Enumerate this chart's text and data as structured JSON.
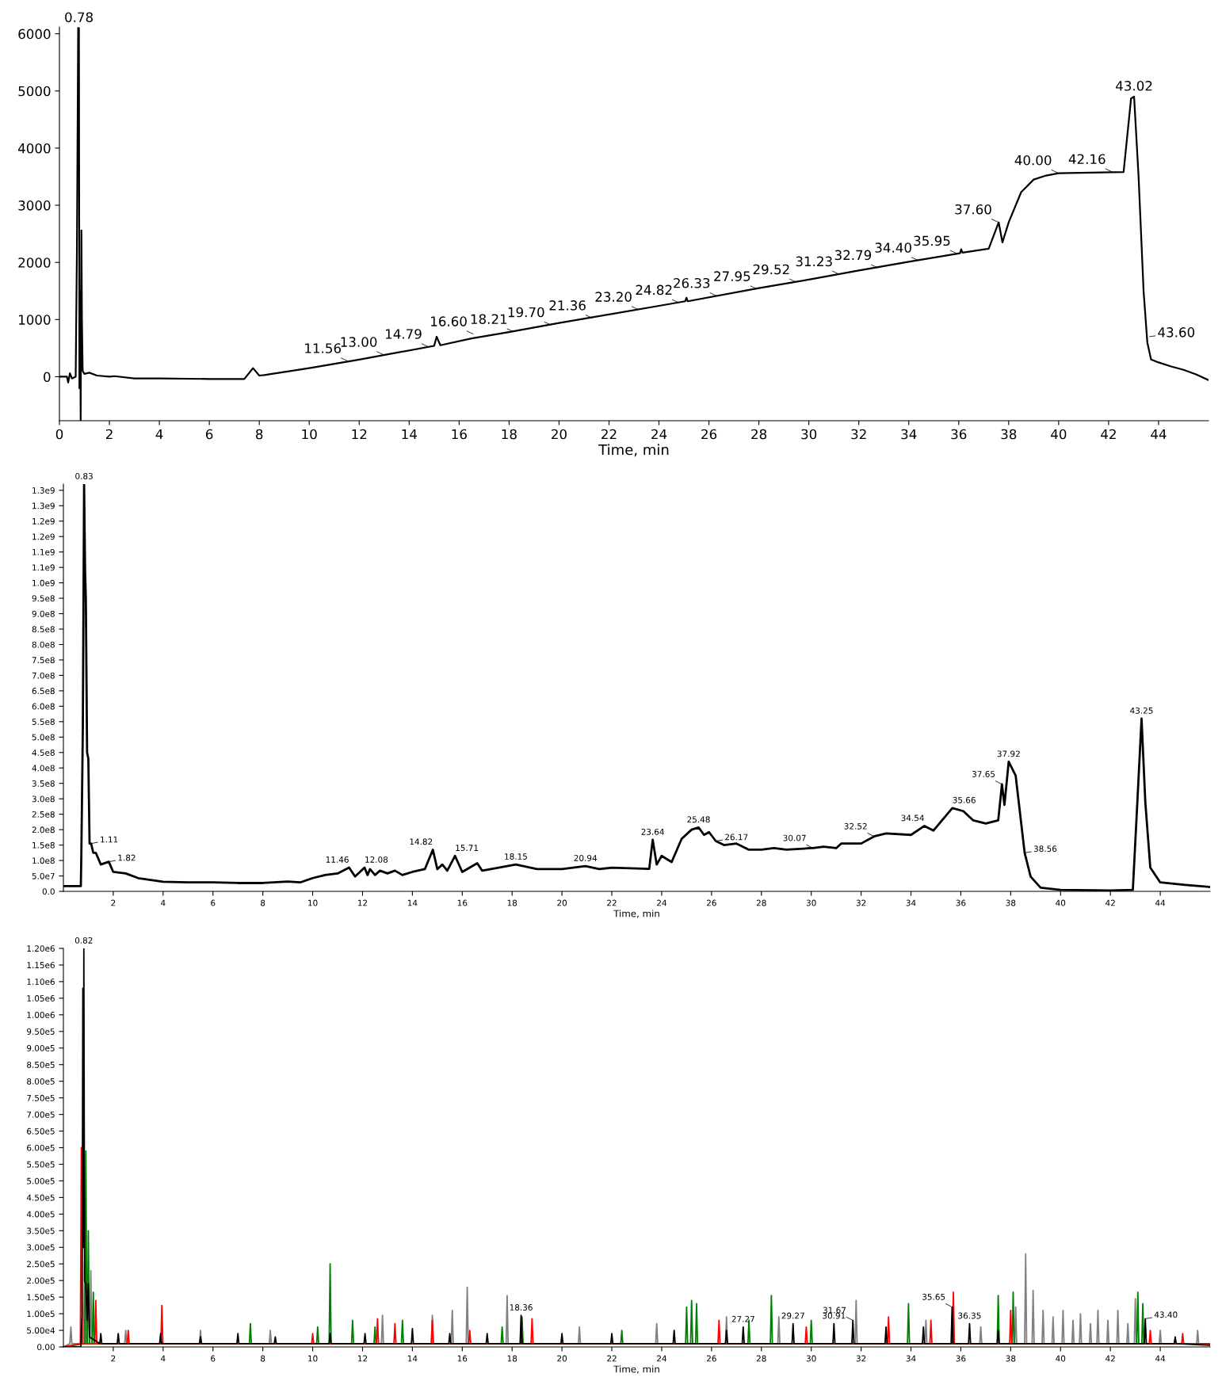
{
  "chart_data": [
    {
      "type": "line",
      "xlabel": "Time, min",
      "xlim": [
        0,
        46
      ],
      "ylim": [
        -770,
        6120
      ],
      "xticks": [
        0,
        2,
        4,
        6,
        8,
        10,
        12,
        14,
        16,
        18,
        20,
        22,
        24,
        26,
        28,
        30,
        32,
        34,
        36,
        38,
        40,
        42,
        44
      ],
      "yticks": [
        0,
        1000,
        2000,
        3000,
        4000,
        5000,
        6000
      ],
      "series": [
        {
          "color": "#000000",
          "x": [
            0,
            0.3,
            0.35,
            0.42,
            0.5,
            0.65,
            0.7,
            0.75,
            0.78,
            0.8,
            0.83,
            0.85,
            0.88,
            0.9,
            0.93,
            1.0,
            1.2,
            1.5,
            2.0,
            2.2,
            3,
            4,
            6,
            7.4,
            7.75,
            8.0,
            8.2,
            10,
            12,
            15,
            15.1,
            15.25,
            16.5,
            18,
            20,
            22,
            24,
            25.05,
            25.1,
            25.15,
            28,
            30,
            32,
            34,
            36.05,
            36.1,
            36.15,
            37.2,
            37.6,
            37.75,
            38.0,
            38.5,
            39.0,
            39.5,
            40.0,
            42.6,
            42.9,
            43.02,
            43.2,
            43.4,
            43.55,
            43.7,
            44.0,
            44.5,
            45.0,
            45.5,
            46
          ],
          "values": [
            0,
            0,
            -100,
            60,
            -30,
            0,
            2200,
            6100,
            6100,
            -200,
            1500,
            -760,
            2560,
            1000,
            100,
            50,
            70,
            20,
            0,
            10,
            -30,
            -30,
            -40,
            -40,
            150,
            20,
            30,
            150,
            300,
            540,
            700,
            550,
            670,
            780,
            940,
            1090,
            1240,
            1320,
            1380,
            1320,
            1550,
            1700,
            1860,
            2010,
            2160,
            2230,
            2170,
            2240,
            2700,
            2350,
            2700,
            3230,
            3450,
            3520,
            3560,
            3580,
            4870,
            4900,
            3500,
            1500,
            600,
            300,
            250,
            180,
            120,
            40,
            -60
          ]
        }
      ],
      "annotations": [
        {
          "text": "0.78",
          "x": 0.78,
          "y": 6100
        },
        {
          "text": "11.56",
          "x": 11.56,
          "y": 270
        },
        {
          "text": "13.00",
          "x": 13.0,
          "y": 380
        },
        {
          "text": "14.79",
          "x": 14.79,
          "y": 520
        },
        {
          "text": "16.60",
          "x": 16.6,
          "y": 740
        },
        {
          "text": "18.21",
          "x": 18.21,
          "y": 780
        },
        {
          "text": "19.70",
          "x": 19.7,
          "y": 900
        },
        {
          "text": "21.36",
          "x": 21.36,
          "y": 1020
        },
        {
          "text": "23.20",
          "x": 23.2,
          "y": 1170
        },
        {
          "text": "24.82",
          "x": 24.82,
          "y": 1290
        },
        {
          "text": "26.33",
          "x": 26.33,
          "y": 1410
        },
        {
          "text": "27.95",
          "x": 27.95,
          "y": 1530
        },
        {
          "text": "29.52",
          "x": 29.52,
          "y": 1650
        },
        {
          "text": "31.23",
          "x": 31.23,
          "y": 1790
        },
        {
          "text": "32.79",
          "x": 32.79,
          "y": 1900
        },
        {
          "text": "34.40",
          "x": 34.4,
          "y": 2030
        },
        {
          "text": "35.95",
          "x": 35.95,
          "y": 2150
        },
        {
          "text": "37.60",
          "x": 37.6,
          "y": 2700
        },
        {
          "text": "40.00",
          "x": 40.0,
          "y": 3560
        },
        {
          "text": "42.16",
          "x": 42.16,
          "y": 3580
        },
        {
          "text": "43.02",
          "x": 43.02,
          "y": 4900
        },
        {
          "text": "43.60",
          "x": 43.6,
          "y": 700
        }
      ]
    },
    {
      "type": "line",
      "xlabel": "Time, min",
      "xlim": [
        0,
        46
      ],
      "ylim": [
        0,
        1320000000
      ],
      "xticks": [
        2,
        4,
        6,
        8,
        10,
        12,
        14,
        16,
        18,
        20,
        22,
        24,
        26,
        28,
        30,
        32,
        34,
        36,
        38,
        40,
        42,
        44
      ],
      "yticks": [
        {
          "value": 0,
          "label": "0.0"
        },
        {
          "value": 50000000,
          "label": "5.0e7"
        },
        {
          "value": 100000000,
          "label": "1.0e8"
        },
        {
          "value": 150000000,
          "label": "1.5e8"
        },
        {
          "value": 200000000,
          "label": "2.0e8"
        },
        {
          "value": 250000000,
          "label": "2.5e8"
        },
        {
          "value": 300000000,
          "label": "3.0e8"
        },
        {
          "value": 350000000,
          "label": "3.5e8"
        },
        {
          "value": 400000000,
          "label": "4.0e8"
        },
        {
          "value": 450000000,
          "label": "4.5e8"
        },
        {
          "value": 500000000,
          "label": "5.0e8"
        },
        {
          "value": 550000000,
          "label": "5.5e8"
        },
        {
          "value": 600000000,
          "label": "6.0e8"
        },
        {
          "value": 650000000,
          "label": "6.5e8"
        },
        {
          "value": 700000000,
          "label": "7.0e8"
        },
        {
          "value": 750000000,
          "label": "7.5e8"
        },
        {
          "value": 800000000,
          "label": "8.0e8"
        },
        {
          "value": 850000000,
          "label": "8.5e8"
        },
        {
          "value": 900000000,
          "label": "9.0e8"
        },
        {
          "value": 950000000,
          "label": "9.5e8"
        },
        {
          "value": 1000000000,
          "label": "1.0e9"
        },
        {
          "value": 1050000000,
          "label": "1.1e9"
        },
        {
          "value": 1100000000,
          "label": "1.1e9"
        },
        {
          "value": 1150000000,
          "label": "1.2e9"
        },
        {
          "value": 1200000000,
          "label": "1.2e9"
        },
        {
          "value": 1250000000,
          "label": "1.3e9"
        },
        {
          "value": 1300000000,
          "label": "1.3e9"
        }
      ],
      "series": [
        {
          "color": "#000000",
          "x": [
            0,
            0.7,
            0.72,
            0.78,
            0.83,
            0.87,
            0.9,
            0.95,
            1.0,
            1.05,
            1.11,
            1.2,
            1.3,
            1.5,
            1.82,
            2.0,
            2.5,
            3,
            4,
            5,
            6,
            7,
            8,
            9,
            9.5,
            10,
            10.5,
            11,
            11.46,
            11.7,
            12.08,
            12.2,
            12.3,
            12.5,
            12.7,
            13,
            13.3,
            13.6,
            14,
            14.5,
            14.82,
            15.0,
            15.2,
            15.4,
            15.71,
            16.0,
            16.6,
            16.8,
            18.15,
            19,
            20,
            20.94,
            21.5,
            22,
            23.5,
            23.64,
            23.8,
            24,
            24.4,
            24.8,
            25.2,
            25.48,
            25.7,
            25.9,
            26.17,
            26.5,
            27,
            27.5,
            28,
            28.5,
            29,
            30,
            30.07,
            30.5,
            31,
            31.2,
            32,
            32.52,
            33,
            34,
            34.54,
            34.9,
            35.66,
            36.1,
            36.5,
            37,
            37.5,
            37.65,
            37.75,
            37.92,
            38.2,
            38.56,
            38.8,
            39.2,
            40,
            42,
            42.9,
            43.05,
            43.25,
            43.4,
            43.6,
            44,
            45,
            46
          ],
          "values": [
            17000000,
            17000000,
            120000000,
            530000000,
            1320000000,
            1040000000,
            950000000,
            450000000,
            430000000,
            155000000,
            155000000,
            125000000,
            125000000,
            87000000,
            96000000,
            63000000,
            58000000,
            43000000,
            31000000,
            29000000,
            29000000,
            27000000,
            27000000,
            32000000,
            29000000,
            43000000,
            53000000,
            58000000,
            77000000,
            48000000,
            77000000,
            53000000,
            72000000,
            53000000,
            67000000,
            58000000,
            67000000,
            53000000,
            63000000,
            72000000,
            135000000,
            72000000,
            87000000,
            67000000,
            115000000,
            63000000,
            91000000,
            67000000,
            87000000,
            72000000,
            72000000,
            82000000,
            72000000,
            77000000,
            73000000,
            167000000,
            87000000,
            115000000,
            95000000,
            170000000,
            200000000,
            207000000,
            183000000,
            192000000,
            163000000,
            150000000,
            155000000,
            135000000,
            135000000,
            140000000,
            135000000,
            140000000,
            140000000,
            145000000,
            140000000,
            155000000,
            155000000,
            178000000,
            188000000,
            183000000,
            212000000,
            197000000,
            270000000,
            260000000,
            230000000,
            220000000,
            230000000,
            347000000,
            280000000,
            420000000,
            375000000,
            125000000,
            48000000,
            12000000,
            5000000,
            3000000,
            5000000,
            240000000,
            560000000,
            290000000,
            77000000,
            29000000,
            21000000,
            14000000
          ]
        }
      ],
      "annotations": [
        {
          "text": "0.83",
          "x": 0.83,
          "y": 1320000000
        },
        {
          "text": "1.11",
          "x": 1.11,
          "y": 155000000
        },
        {
          "text": "1.82",
          "x": 1.82,
          "y": 96000000
        },
        {
          "text": "11.46",
          "x": 11.46,
          "y": 77000000
        },
        {
          "text": "12.08",
          "x": 12.08,
          "y": 77000000
        },
        {
          "text": "14.82",
          "x": 14.82,
          "y": 135000000
        },
        {
          "text": "15.71",
          "x": 15.71,
          "y": 115000000
        },
        {
          "text": "18.15",
          "x": 18.15,
          "y": 87000000
        },
        {
          "text": "20.94",
          "x": 20.94,
          "y": 82000000
        },
        {
          "text": "23.64",
          "x": 23.64,
          "y": 167000000
        },
        {
          "text": "25.48",
          "x": 25.48,
          "y": 207000000
        },
        {
          "text": "26.17",
          "x": 26.17,
          "y": 163000000
        },
        {
          "text": "30.07",
          "x": 30.07,
          "y": 140000000
        },
        {
          "text": "32.52",
          "x": 32.52,
          "y": 178000000
        },
        {
          "text": "34.54",
          "x": 34.54,
          "y": 212000000
        },
        {
          "text": "35.66",
          "x": 35.66,
          "y": 270000000
        },
        {
          "text": "37.65",
          "x": 37.65,
          "y": 347000000
        },
        {
          "text": "37.92",
          "x": 37.92,
          "y": 420000000
        },
        {
          "text": "38.56",
          "x": 38.56,
          "y": 125000000
        },
        {
          "text": "43.25",
          "x": 43.25,
          "y": 560000000
        }
      ]
    },
    {
      "type": "line",
      "xlabel": "Time, min",
      "xlim": [
        0,
        46
      ],
      "ylim": [
        0,
        1200000
      ],
      "xticks": [
        2,
        4,
        6,
        8,
        10,
        12,
        14,
        16,
        18,
        20,
        22,
        24,
        26,
        28,
        30,
        32,
        34,
        36,
        38,
        40,
        42,
        44
      ],
      "yticks": [
        {
          "value": 0,
          "label": "0.00"
        },
        {
          "value": 50000,
          "label": "5.00e4"
        },
        {
          "value": 100000,
          "label": "1.00e5"
        },
        {
          "value": 150000,
          "label": "1.50e5"
        },
        {
          "value": 200000,
          "label": "2.00e5"
        },
        {
          "value": 250000,
          "label": "2.50e5"
        },
        {
          "value": 300000,
          "label": "3.00e5"
        },
        {
          "value": 350000,
          "label": "3.50e5"
        },
        {
          "value": 400000,
          "label": "4.00e5"
        },
        {
          "value": 450000,
          "label": "4.50e5"
        },
        {
          "value": 500000,
          "label": "5.00e5"
        },
        {
          "value": 550000,
          "label": "5.50e5"
        },
        {
          "value": 600000,
          "label": "6.00e5"
        },
        {
          "value": 650000,
          "label": "6.50e5"
        },
        {
          "value": 700000,
          "label": "7.00e5"
        },
        {
          "value": 750000,
          "label": "7.50e5"
        },
        {
          "value": 800000,
          "label": "8.00e5"
        },
        {
          "value": 850000,
          "label": "8.50e5"
        },
        {
          "value": 900000,
          "label": "9.00e5"
        },
        {
          "value": 950000,
          "label": "9.50e5"
        },
        {
          "value": 1000000,
          "label": "1.00e6"
        },
        {
          "value": 1050000,
          "label": "1.05e6"
        },
        {
          "value": 1100000,
          "label": "1.10e6"
        },
        {
          "value": 1150000,
          "label": "1.15e6"
        },
        {
          "value": 1200000,
          "label": "1.20e6"
        }
      ],
      "series": [
        {
          "color": "#808080",
          "x": [
            0,
            0.26,
            0.3,
            0.34,
            0.81,
            0.85,
            0.89,
            1.06,
            1.1,
            1.14,
            2.46,
            2.5,
            2.54,
            5.46,
            5.5,
            5.54,
            8.26,
            8.3,
            8.34,
            12.76,
            12.8,
            12.84,
            14.76,
            14.8,
            14.84,
            15.56,
            15.6,
            15.64,
            16.16,
            16.2,
            16.24,
            17.76,
            17.8,
            17.84,
            20.66,
            20.7,
            20.74,
            23.76,
            23.8,
            23.84,
            26.56,
            26.6,
            26.64,
            28.66,
            28.7,
            28.74,
            31.76,
            31.8,
            31.84,
            34.56,
            34.6,
            34.64,
            36.76,
            36.8,
            36.84,
            38.16,
            38.2,
            38.24,
            38.56,
            38.6,
            38.64,
            38.86,
            38.9,
            38.94,
            39.26,
            39.3,
            39.34,
            39.66,
            39.7,
            39.74,
            40.06,
            40.1,
            40.14,
            40.46,
            40.5,
            40.54,
            40.76,
            40.8,
            40.84,
            41.16,
            41.2,
            41.24,
            41.46,
            41.5,
            41.54,
            41.86,
            41.9,
            41.94,
            42.26,
            42.3,
            42.34,
            42.66,
            42.7,
            42.74,
            42.96,
            43.0,
            43.04,
            43.96,
            44.0,
            44.04,
            45.46,
            45.5,
            45.54,
            46
          ],
          "values": [
            0,
            10000,
            60000,
            10000,
            10000,
            250000,
            10000,
            10000,
            230000,
            10000,
            10000,
            50000,
            10000,
            10000,
            50000,
            10000,
            10000,
            50000,
            10000,
            10000,
            95000,
            10000,
            10000,
            95000,
            10000,
            10000,
            110000,
            10000,
            10000,
            180000,
            10000,
            10000,
            155000,
            10000,
            10000,
            60000,
            10000,
            10000,
            70000,
            10000,
            10000,
            90000,
            10000,
            10000,
            90000,
            10000,
            10000,
            140000,
            10000,
            10000,
            80000,
            10000,
            10000,
            60000,
            10000,
            10000,
            120000,
            10000,
            10000,
            280000,
            10000,
            10000,
            170000,
            10000,
            10000,
            110000,
            10000,
            10000,
            90000,
            10000,
            10000,
            110000,
            10000,
            10000,
            80000,
            10000,
            10000,
            100000,
            10000,
            10000,
            70000,
            10000,
            10000,
            110000,
            10000,
            10000,
            80000,
            10000,
            10000,
            110000,
            10000,
            10000,
            70000,
            10000,
            10000,
            145000,
            10000,
            10000,
            50000,
            10000,
            10000,
            50000,
            10000,
            10000
          ]
        },
        {
          "color": "#008000",
          "x": [
            0,
            0.86,
            0.9,
            0.94,
            0.96,
            1.0,
            1.04,
            1.16,
            1.2,
            1.24,
            7.46,
            7.5,
            7.54,
            10.16,
            10.2,
            10.24,
            10.66,
            10.7,
            10.74,
            11.56,
            11.6,
            11.64,
            12.46,
            12.5,
            12.54,
            13.56,
            13.6,
            13.64,
            17.56,
            17.6,
            17.64,
            18.36,
            18.4,
            18.44,
            22.36,
            22.4,
            22.44,
            24.96,
            25.0,
            25.04,
            25.16,
            25.2,
            25.24,
            25.36,
            25.4,
            25.44,
            27.46,
            27.5,
            27.54,
            28.36,
            28.4,
            28.44,
            29.96,
            30.0,
            30.04,
            33.86,
            33.9,
            33.94,
            37.46,
            37.5,
            37.54,
            38.06,
            38.1,
            38.14,
            43.06,
            43.1,
            43.14,
            43.26,
            43.3,
            43.34,
            46
          ],
          "values": [
            0,
            10000,
            590000,
            10000,
            10000,
            350000,
            10000,
            10000,
            165000,
            10000,
            10000,
            70000,
            10000,
            10000,
            60000,
            10000,
            10000,
            250000,
            10000,
            10000,
            80000,
            10000,
            10000,
            60000,
            10000,
            10000,
            80000,
            10000,
            10000,
            60000,
            10000,
            10000,
            90000,
            10000,
            10000,
            50000,
            10000,
            10000,
            120000,
            10000,
            10000,
            140000,
            10000,
            10000,
            130000,
            10000,
            10000,
            80000,
            10000,
            10000,
            155000,
            10000,
            10000,
            80000,
            10000,
            10000,
            130000,
            10000,
            10000,
            155000,
            10000,
            10000,
            165000,
            10000,
            10000,
            165000,
            10000,
            10000,
            130000,
            10000,
            10000
          ]
        },
        {
          "color": "#ff0000",
          "x": [
            0,
            0.68,
            0.72,
            0.76,
            1.26,
            1.3,
            1.34,
            2.56,
            2.6,
            2.64,
            3.91,
            3.95,
            3.99,
            9.96,
            10.0,
            10.04,
            12.56,
            12.6,
            12.64,
            13.26,
            13.3,
            13.34,
            14.76,
            14.8,
            14.84,
            16.26,
            16.3,
            16.34,
            18.76,
            18.8,
            18.84,
            26.26,
            26.3,
            26.34,
            29.76,
            29.8,
            29.84,
            33.06,
            33.1,
            33.14,
            34.76,
            34.8,
            34.84,
            35.66,
            35.7,
            35.74,
            37.96,
            38.0,
            38.04,
            43.56,
            43.6,
            43.64,
            44.86,
            44.9,
            44.94,
            46
          ],
          "values": [
            0,
            10000,
            600000,
            10000,
            10000,
            140000,
            10000,
            10000,
            50000,
            10000,
            10000,
            125000,
            10000,
            10000,
            40000,
            10000,
            10000,
            85000,
            10000,
            10000,
            70000,
            10000,
            10000,
            80000,
            10000,
            10000,
            50000,
            10000,
            10000,
            85000,
            10000,
            10000,
            80000,
            10000,
            10000,
            60000,
            10000,
            10000,
            90000,
            10000,
            10000,
            80000,
            10000,
            10000,
            165000,
            10000,
            10000,
            110000,
            10000,
            10000,
            50000,
            10000,
            10000,
            40000,
            10000,
            10000
          ]
        },
        {
          "color": "#000000",
          "x": [
            0,
            0.7,
            0.75,
            0.78,
            0.8,
            0.82,
            0.85,
            0.9,
            0.95,
            1.0,
            1.05,
            1.46,
            1.5,
            1.54,
            2.16,
            2.2,
            2.24,
            3.86,
            3.9,
            3.94,
            5.46,
            5.5,
            5.54,
            6.96,
            7.0,
            7.04,
            8.46,
            8.5,
            8.54,
            10.66,
            10.7,
            10.74,
            12.06,
            12.1,
            12.14,
            13.96,
            14.0,
            14.04,
            15.46,
            15.5,
            15.54,
            16.96,
            17.0,
            17.04,
            18.32,
            18.36,
            18.4,
            19.96,
            20.0,
            20.04,
            21.96,
            22.0,
            22.04,
            24.46,
            24.5,
            24.54,
            26.56,
            26.6,
            26.64,
            27.23,
            27.27,
            27.31,
            29.23,
            29.27,
            29.31,
            30.87,
            30.91,
            30.95,
            31.63,
            31.67,
            31.71,
            32.96,
            33.0,
            33.04,
            34.46,
            34.5,
            34.54,
            35.61,
            35.65,
            35.69,
            36.31,
            36.35,
            36.39,
            37.46,
            37.5,
            37.54,
            43.36,
            43.4,
            43.44,
            44.56,
            44.6,
            44.64,
            46
          ],
          "values": [
            0,
            0,
            100000,
            1080000,
            300000,
            1200000,
            200000,
            190000,
            80000,
            190000,
            30000,
            10000,
            40000,
            10000,
            10000,
            40000,
            10000,
            10000,
            40000,
            10000,
            10000,
            30000,
            10000,
            10000,
            40000,
            10000,
            10000,
            30000,
            10000,
            10000,
            40000,
            10000,
            10000,
            40000,
            10000,
            10000,
            55000,
            10000,
            10000,
            40000,
            10000,
            10000,
            40000,
            10000,
            10000,
            95000,
            10000,
            10000,
            40000,
            10000,
            10000,
            40000,
            10000,
            10000,
            50000,
            10000,
            10000,
            50000,
            10000,
            10000,
            60000,
            10000,
            10000,
            70000,
            10000,
            10000,
            70000,
            10000,
            10000,
            80000,
            10000,
            10000,
            60000,
            10000,
            10000,
            60000,
            10000,
            10000,
            120000,
            10000,
            10000,
            70000,
            10000,
            10000,
            50000,
            10000,
            10000,
            85000,
            10000,
            10000,
            30000,
            10000,
            5000
          ]
        }
      ],
      "annotations": [
        {
          "text": "0.82",
          "x": 0.82,
          "y": 1200000
        },
        {
          "text": "18.36",
          "x": 18.36,
          "y": 95000
        },
        {
          "text": "27.27",
          "x": 27.27,
          "y": 60000
        },
        {
          "text": "29.27",
          "x": 29.27,
          "y": 70000
        },
        {
          "text": "30.91",
          "x": 30.91,
          "y": 70000
        },
        {
          "text": "31.67",
          "x": 31.67,
          "y": 80000
        },
        {
          "text": "35.65",
          "x": 35.65,
          "y": 120000
        },
        {
          "text": "36.35",
          "x": 36.35,
          "y": 70000
        },
        {
          "text": "43.40",
          "x": 43.4,
          "y": 85000
        }
      ]
    }
  ]
}
